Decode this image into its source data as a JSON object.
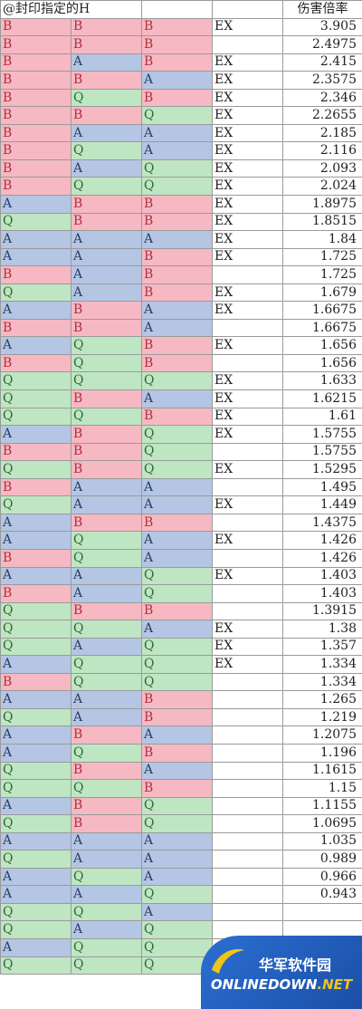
{
  "header": {
    "title": "@封印指定的H",
    "multiplier": "伤害倍率"
  },
  "rows": [
    [
      "B",
      "B",
      "B",
      "EX",
      "3.905"
    ],
    [
      "B",
      "B",
      "B",
      "",
      "2.4975"
    ],
    [
      "B",
      "A",
      "B",
      "EX",
      "2.415"
    ],
    [
      "B",
      "B",
      "A",
      "EX",
      "2.3575"
    ],
    [
      "B",
      "Q",
      "B",
      "EX",
      "2.346"
    ],
    [
      "B",
      "B",
      "Q",
      "EX",
      "2.2655"
    ],
    [
      "B",
      "A",
      "A",
      "EX",
      "2.185"
    ],
    [
      "B",
      "Q",
      "A",
      "EX",
      "2.116"
    ],
    [
      "B",
      "A",
      "Q",
      "EX",
      "2.093"
    ],
    [
      "B",
      "Q",
      "Q",
      "EX",
      "2.024"
    ],
    [
      "A",
      "B",
      "B",
      "EX",
      "1.8975"
    ],
    [
      "Q",
      "B",
      "B",
      "EX",
      "1.8515"
    ],
    [
      "A",
      "A",
      "A",
      "EX",
      "1.84"
    ],
    [
      "A",
      "A",
      "B",
      "EX",
      "1.725"
    ],
    [
      "B",
      "A",
      "B",
      "",
      "1.725"
    ],
    [
      "Q",
      "A",
      "B",
      "EX",
      "1.679"
    ],
    [
      "A",
      "B",
      "A",
      "EX",
      "1.6675"
    ],
    [
      "B",
      "B",
      "A",
      "",
      "1.6675"
    ],
    [
      "A",
      "Q",
      "B",
      "EX",
      "1.656"
    ],
    [
      "B",
      "Q",
      "B",
      "",
      "1.656"
    ],
    [
      "Q",
      "Q",
      "Q",
      "EX",
      "1.633"
    ],
    [
      "Q",
      "B",
      "A",
      "EX",
      "1.6215"
    ],
    [
      "Q",
      "Q",
      "B",
      "EX",
      "1.61"
    ],
    [
      "A",
      "B",
      "Q",
      "EX",
      "1.5755"
    ],
    [
      "B",
      "B",
      "Q",
      "",
      "1.5755"
    ],
    [
      "Q",
      "B",
      "Q",
      "EX",
      "1.5295"
    ],
    [
      "B",
      "A",
      "A",
      "",
      "1.495"
    ],
    [
      "Q",
      "A",
      "A",
      "EX",
      "1.449"
    ],
    [
      "A",
      "B",
      "B",
      "",
      "1.4375"
    ],
    [
      "A",
      "Q",
      "A",
      "EX",
      "1.426"
    ],
    [
      "B",
      "Q",
      "A",
      "",
      "1.426"
    ],
    [
      "A",
      "A",
      "Q",
      "EX",
      "1.403"
    ],
    [
      "B",
      "A",
      "Q",
      "",
      "1.403"
    ],
    [
      "Q",
      "B",
      "B",
      "",
      "1.3915"
    ],
    [
      "Q",
      "Q",
      "A",
      "EX",
      "1.38"
    ],
    [
      "Q",
      "A",
      "Q",
      "EX",
      "1.357"
    ],
    [
      "A",
      "Q",
      "Q",
      "EX",
      "1.334"
    ],
    [
      "B",
      "Q",
      "Q",
      "",
      "1.334"
    ],
    [
      "A",
      "A",
      "B",
      "",
      "1.265"
    ],
    [
      "Q",
      "A",
      "B",
      "",
      "1.219"
    ],
    [
      "A",
      "B",
      "A",
      "",
      "1.2075"
    ],
    [
      "A",
      "Q",
      "B",
      "",
      "1.196"
    ],
    [
      "Q",
      "B",
      "A",
      "",
      "1.1615"
    ],
    [
      "Q",
      "Q",
      "B",
      "",
      "1.15"
    ],
    [
      "A",
      "B",
      "Q",
      "",
      "1.1155"
    ],
    [
      "Q",
      "B",
      "Q",
      "",
      "1.0695"
    ],
    [
      "A",
      "A",
      "A",
      "",
      "1.035"
    ],
    [
      "Q",
      "A",
      "A",
      "",
      "0.989"
    ],
    [
      "A",
      "Q",
      "A",
      "",
      "0.966"
    ],
    [
      "A",
      "A",
      "Q",
      "",
      "0.943"
    ],
    [
      "Q",
      "Q",
      "A",
      "",
      ""
    ],
    [
      "Q",
      "A",
      "Q",
      "",
      ""
    ],
    [
      "A",
      "Q",
      "Q",
      "",
      ""
    ],
    [
      "Q",
      "Q",
      "Q",
      "",
      ""
    ]
  ],
  "watermark": {
    "cn": "华军软件园",
    "en_main": "ONLINEDOWN",
    "en_suffix": ".NET"
  }
}
